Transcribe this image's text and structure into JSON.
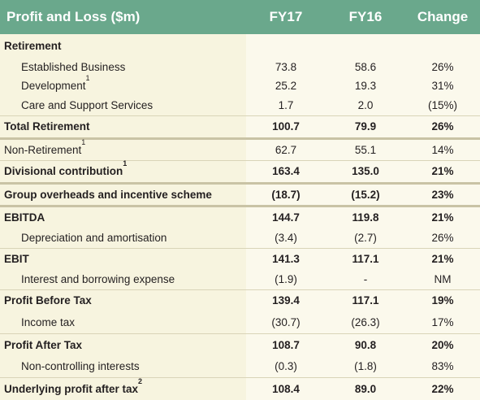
{
  "header": {
    "title": "Profit and Loss ($m)",
    "col1": "FY17",
    "col2": "FY16",
    "col3": "Change"
  },
  "rows": [
    {
      "label": "Retirement",
      "sup": "",
      "fy17": "",
      "fy16": "",
      "change": ""
    },
    {
      "label": "Established Business",
      "sup": "",
      "fy17": "73.8",
      "fy16": "58.6",
      "change": "26%"
    },
    {
      "label": "Development",
      "sup": "1",
      "fy17": "25.2",
      "fy16": "19.3",
      "change": "31%"
    },
    {
      "label": "Care and Support Services",
      "sup": "",
      "fy17": "1.7",
      "fy16": "2.0",
      "change": "(15%)"
    },
    {
      "label": "Total Retirement",
      "sup": "",
      "fy17": "100.7",
      "fy16": "79.9",
      "change": "26%"
    },
    {
      "label": "Non-Retirement",
      "sup": "1",
      "fy17": "62.7",
      "fy16": "55.1",
      "change": "14%"
    },
    {
      "label": "Divisional contribution",
      "sup": "1",
      "fy17": "163.4",
      "fy16": "135.0",
      "change": "21%"
    },
    {
      "label": "Group overheads and incentive scheme",
      "sup": "",
      "fy17": "(18.7)",
      "fy16": "(15.2)",
      "change": "23%"
    },
    {
      "label": "EBITDA",
      "sup": "",
      "fy17": "144.7",
      "fy16": "119.8",
      "change": "21%"
    },
    {
      "label": "Depreciation and amortisation",
      "sup": "",
      "fy17": "(3.4)",
      "fy16": "(2.7)",
      "change": "26%"
    },
    {
      "label": "EBIT",
      "sup": "",
      "fy17": "141.3",
      "fy16": "117.1",
      "change": "21%"
    },
    {
      "label": "Interest and borrowing expense",
      "sup": "",
      "fy17": "(1.9)",
      "fy16": "-",
      "change": "NM"
    },
    {
      "label": "Profit Before Tax",
      "sup": "",
      "fy17": "139.4",
      "fy16": "117.1",
      "change": "19%"
    },
    {
      "label": "Income tax",
      "sup": "",
      "fy17": "(30.7)",
      "fy16": "(26.3)",
      "change": "17%"
    },
    {
      "label": "Profit After Tax",
      "sup": "",
      "fy17": "108.7",
      "fy16": "90.8",
      "change": "20%"
    },
    {
      "label": "Non-controlling interests",
      "sup": "",
      "fy17": "(0.3)",
      "fy16": "(1.8)",
      "change": "83%"
    },
    {
      "label": "Underlying profit after tax",
      "sup": "2",
      "fy17": "108.4",
      "fy16": "89.0",
      "change": "22%"
    }
  ]
}
